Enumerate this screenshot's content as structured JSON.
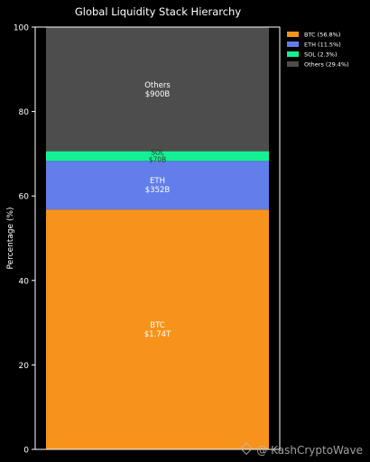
{
  "chart_data": {
    "type": "bar",
    "stacked": true,
    "title": "Global Liquidity Stack Hierarchy",
    "ylabel": "Percentage (%)",
    "ylim": [
      0,
      100
    ],
    "yticks": [
      0,
      20,
      40,
      60,
      80,
      100
    ],
    "grid": false,
    "legend_position": "top-right",
    "series": [
      {
        "name": "BTC",
        "legend": "BTC (56.8%)",
        "value": 56.8,
        "label": "BTC",
        "amount": "$1.74T",
        "color": "#f7931a"
      },
      {
        "name": "ETH",
        "legend": "ETH (11.5%)",
        "value": 11.5,
        "label": "ETH",
        "amount": "$352B",
        "color": "#627eea"
      },
      {
        "name": "SOL",
        "legend": "SOL (2.3%)",
        "value": 2.3,
        "label": "SOL",
        "amount": "$70B",
        "color": "#14f195"
      },
      {
        "name": "Others",
        "legend": "Others (29.4%)",
        "value": 29.4,
        "label": "Others",
        "amount": "$900B",
        "color": "#4d4d4d"
      }
    ]
  },
  "watermark": "@ KashCryptoWave"
}
